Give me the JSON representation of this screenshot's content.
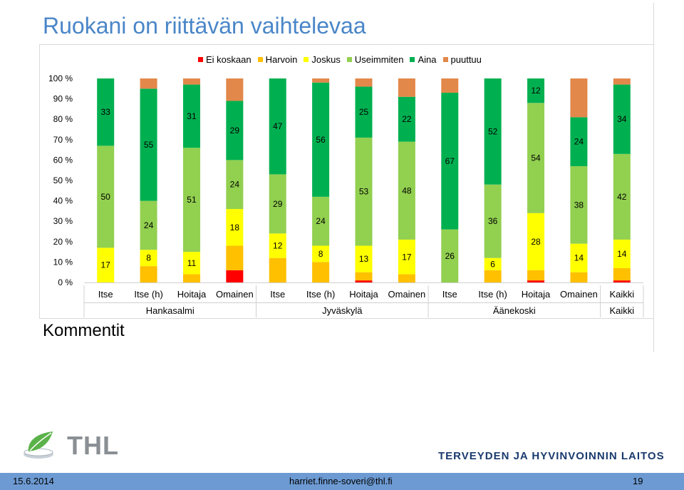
{
  "slide": {
    "title": "Ruokani on riittävän vaihtelevaa",
    "comment_heading": "Kommentit",
    "logo_text": "THL",
    "org_name": "TERVEYDEN JA HYVINVOINNIN LAITOS",
    "footer": {
      "date": "15.6.2014",
      "email": "harriet.finne-soveri@thl.fi",
      "page": "19"
    }
  },
  "colors": {
    "ei_koskaan": "#ff0000",
    "harvoin": "#ffc000",
    "joskus": "#ffff00",
    "useimmiten": "#92d050",
    "aina": "#00b050",
    "puuttuu": "#e2884a",
    "title": "#4a86c8",
    "footer": "#6d9ad2"
  },
  "chart_data": {
    "type": "bar",
    "stacked": true,
    "percent": true,
    "ylim": [
      0,
      100
    ],
    "yticks": [
      "0 %",
      "10 %",
      "20 %",
      "30 %",
      "40 %",
      "50 %",
      "60 %",
      "70 %",
      "80 %",
      "90 %",
      "100 %"
    ],
    "categories": [
      "Itse",
      "Itse (h)",
      "Hoitaja",
      "Omainen",
      "Itse",
      "Itse (h)",
      "Hoitaja",
      "Omainen",
      "Itse",
      "Itse (h)",
      "Hoitaja",
      "Omainen",
      "Kaikki"
    ],
    "groups": [
      {
        "label": "Hankasalmi",
        "count": 4
      },
      {
        "label": "Jyväskylä",
        "count": 4
      },
      {
        "label": "Äänekoski",
        "count": 4
      },
      {
        "label": "Kaikki",
        "count": 1
      }
    ],
    "legend_position": "top",
    "series": [
      {
        "name": "Ei koskaan",
        "key": "ei_koskaan",
        "values": [
          0,
          0,
          0,
          6,
          0,
          0,
          1,
          0,
          0,
          0,
          1,
          0,
          1
        ]
      },
      {
        "name": "Harvoin",
        "key": "harvoin",
        "values": [
          0,
          8,
          4,
          12,
          12,
          10,
          4,
          4,
          0,
          6,
          5,
          5,
          6
        ]
      },
      {
        "name": "Joskus",
        "key": "joskus",
        "values": [
          17,
          8,
          11,
          18,
          12,
          8,
          13,
          17,
          0,
          6,
          28,
          14,
          14
        ]
      },
      {
        "name": "Useimmiten",
        "key": "useimmiten",
        "values": [
          50,
          24,
          51,
          24,
          29,
          24,
          53,
          48,
          26,
          36,
          54,
          38,
          42
        ]
      },
      {
        "name": "Aina",
        "key": "aina",
        "values": [
          33,
          55,
          31,
          29,
          47,
          56,
          25,
          22,
          67,
          52,
          12,
          24,
          34
        ]
      },
      {
        "name": "puuttuu",
        "key": "puuttuu",
        "values": [
          0,
          5,
          3,
          11,
          0,
          2,
          4,
          9,
          7,
          0,
          0,
          19,
          3
        ]
      }
    ],
    "data_labels": [
      [
        "17",
        "50",
        "33"
      ],
      [
        "8",
        "24",
        "55"
      ],
      [
        "11",
        "51",
        "31"
      ],
      [
        "18",
        "24",
        "29"
      ],
      [
        "12",
        "29",
        "47"
      ],
      [
        "8",
        "24",
        "56"
      ],
      [
        "13",
        "53",
        "25"
      ],
      [
        "17",
        "48",
        "22"
      ],
      [
        "26",
        "67"
      ],
      [
        "6",
        "36",
        "52"
      ],
      [
        "28",
        "54",
        "12"
      ],
      [
        "14",
        "38",
        "24"
      ],
      [
        "14",
        "42",
        "34"
      ]
    ],
    "data_label_series": [
      [
        "joskus",
        "useimmiten",
        "aina"
      ],
      [
        "joskus",
        "useimmiten",
        "aina"
      ],
      [
        "joskus",
        "useimmiten",
        "aina"
      ],
      [
        "joskus",
        "useimmiten",
        "aina"
      ],
      [
        "joskus",
        "useimmiten",
        "aina"
      ],
      [
        "joskus",
        "useimmiten",
        "aina"
      ],
      [
        "joskus",
        "useimmiten",
        "aina"
      ],
      [
        "joskus",
        "useimmiten",
        "aina"
      ],
      [
        "useimmiten",
        "aina"
      ],
      [
        "joskus",
        "useimmiten",
        "aina"
      ],
      [
        "joskus",
        "useimmiten",
        "aina"
      ],
      [
        "joskus",
        "useimmiten",
        "aina"
      ],
      [
        "joskus",
        "useimmiten",
        "aina"
      ]
    ]
  }
}
